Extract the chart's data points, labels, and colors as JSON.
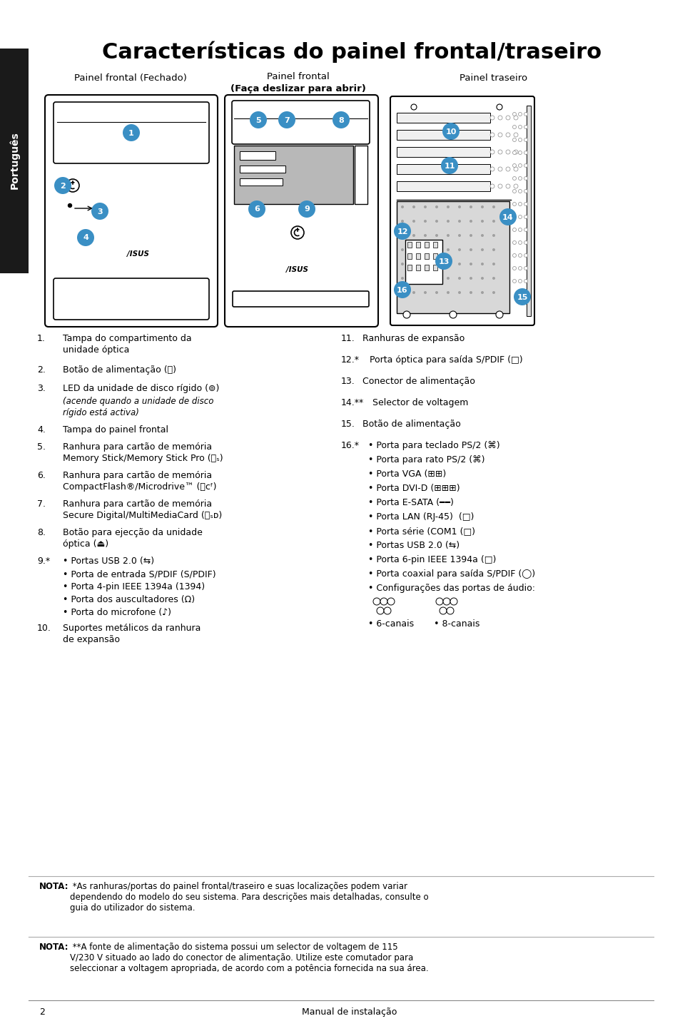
{
  "title": "Características do painel frontal/traseiro",
  "subtitle_left": "Painel frontal (Fechado)",
  "subtitle_center1": "Painel frontal",
  "subtitle_center2": "(Faça deslizar para abrir)",
  "subtitle_right": "Painel traseiro",
  "sidebar_text": "Português",
  "page_number": "2",
  "footer_text": "Manual de instalação",
  "note1_intro": "NOTA:",
  "note1_body": " *As ranhuras/portas do painel frontal/traseiro e suas localizações podem variar\ndependendo do modelo do seu sistema. Para descrições mais detalhadas, consulte o\nguia do utilizador do sistema.",
  "note2_intro": "NOTA:",
  "note2_body": " **A fonte de alimentação do sistema possui um selector de voltagem de 115\nV/230 V situado ao lado do conector de alimentação. Utilize este comutador para\nseleccionar a voltagem apropriada, de acordo com a potência fornecida na sua área.",
  "blue": "#3a8fc4",
  "white": "#ffffff",
  "black": "#000000",
  "sidebar_bg": "#1a1a1a",
  "grey_light": "#d8d8d8",
  "grey_mid": "#b8b8b8"
}
